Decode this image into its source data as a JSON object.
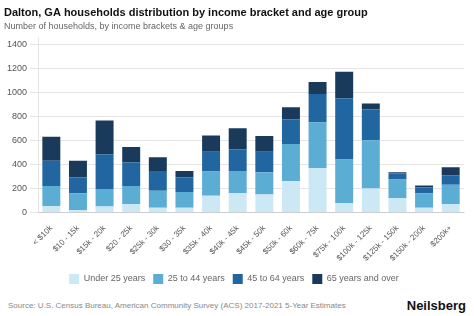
{
  "chart_data": {
    "type": "bar",
    "stacked": true,
    "title": "Dalton, GA households distribution by income bracket and age group",
    "subtitle": "Number of households, by income brackets & age groups",
    "source": "Source: U.S. Census Bureau, American Community Survey (ACS) 2017-2021 5-Year Estimates",
    "annotations": [
      "Neilsberg"
    ],
    "categories": [
      "< $10k",
      "$10 - 15k",
      "$15k - 20k",
      "$20 - 25k",
      "$25k - 30k",
      "$30 - 35k",
      "$35k - 40k",
      "$40k - 45k",
      "$45k - 50k",
      "$50k - 60k",
      "$60k - 75k",
      "$75k - 100k",
      "$100k - 125k",
      "$125k - 150k",
      "$150k - 200k",
      "$200k+"
    ],
    "series": [
      {
        "name": "Under 25 years",
        "color": "#cde8f5",
        "values": [
          55,
          20,
          50,
          70,
          40,
          40,
          140,
          160,
          150,
          260,
          370,
          80,
          200,
          120,
          40,
          70
        ]
      },
      {
        "name": "25 to 44 years",
        "color": "#5badd4",
        "values": [
          165,
          140,
          145,
          150,
          140,
          130,
          200,
          185,
          185,
          310,
          380,
          360,
          400,
          155,
          120,
          160
        ]
      },
      {
        "name": "45 to 64 years",
        "color": "#2166a0",
        "values": [
          210,
          130,
          290,
          195,
          165,
          120,
          165,
          180,
          170,
          205,
          235,
          510,
          255,
          50,
          50,
          80
        ]
      },
      {
        "name": "65 years and over",
        "color": "#1a3a5c",
        "values": [
          200,
          140,
          280,
          130,
          115,
          55,
          135,
          175,
          130,
          100,
          100,
          220,
          50,
          10,
          15,
          65
        ]
      }
    ],
    "ylim": [
      0,
      1450
    ],
    "yticks": [
      0,
      200,
      400,
      600,
      800,
      1000,
      1200,
      1400
    ],
    "grid": true,
    "legend": "bottom"
  }
}
